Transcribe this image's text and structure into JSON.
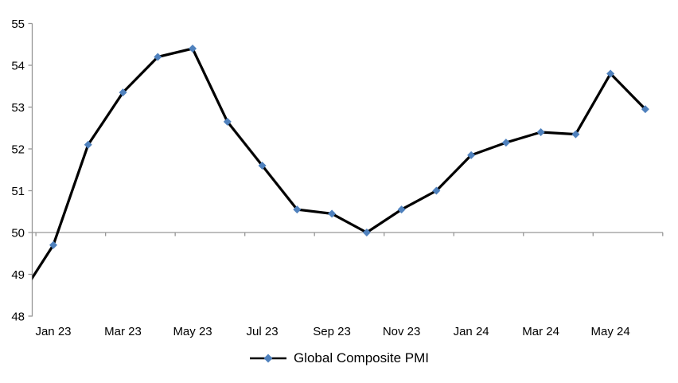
{
  "chart_data": {
    "type": "line",
    "series": [
      {
        "name": "Global Composite PMI",
        "categories": [
          "Jan 23",
          "Feb 23",
          "Mar 23",
          "Apr 23",
          "May 23",
          "Jun 23",
          "Jul 23",
          "Aug 23",
          "Sep 23",
          "Oct 23",
          "Nov 23",
          "Dec 23",
          "Jan 24",
          "Feb 24",
          "Mar 24",
          "Apr 24",
          "May 24",
          "Jun 24"
        ],
        "values": [
          49.7,
          52.1,
          53.35,
          54.2,
          54.4,
          52.65,
          51.6,
          50.55,
          50.45,
          50.0,
          50.55,
          51.0,
          51.85,
          52.15,
          52.4,
          52.35,
          53.8,
          52.95
        ],
        "lead_in_value": 48.4,
        "lead_in_clipped_at_left_edge": true,
        "line_color": "#000000",
        "marker_shape": "diamond",
        "marker_color": "#4F81BD"
      }
    ],
    "x_tick_labels": [
      "Jan 23",
      "Mar 23",
      "May 23",
      "Jul 23",
      "Sep 23",
      "Nov 23",
      "Jan 24",
      "Mar 24",
      "May 24"
    ],
    "y_ticks": [
      55,
      54,
      53,
      52,
      51,
      50,
      49,
      48
    ],
    "ylim": [
      48,
      55
    ],
    "x_axis_cross_value": 50,
    "gridlines": "none",
    "axis_color": "#969696",
    "text_color": "#000000",
    "background_color": "#FFFFFF",
    "legend": {
      "position": "bottom",
      "label": "Global Composite PMI"
    }
  }
}
